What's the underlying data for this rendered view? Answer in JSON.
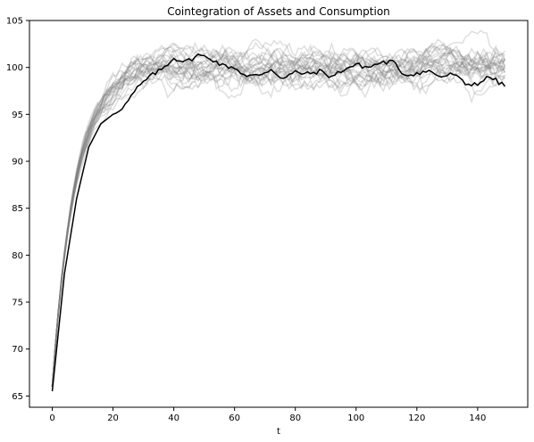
{
  "chart_data": {
    "type": "line",
    "title": "Cointegration of Assets and Consumption",
    "xlabel": "t",
    "ylabel": "",
    "xlim": [
      -7.5,
      156.5
    ],
    "ylim": [
      63.8,
      105
    ],
    "xticks": [
      0,
      20,
      40,
      60,
      80,
      100,
      120,
      140
    ],
    "yticks": [
      65,
      70,
      75,
      80,
      85,
      90,
      95,
      100,
      105
    ],
    "grid": false,
    "legend": "none",
    "n_points": 150,
    "background_series": {
      "count": 25,
      "color": "#808080",
      "opacity": 0.25,
      "start": 66.0,
      "plateau": 100.0
    },
    "highlight_series": {
      "color": "#000000",
      "x": [
        0,
        4,
        8,
        12,
        16,
        20,
        24,
        28,
        32,
        36,
        40,
        44,
        48,
        52,
        56,
        60,
        64,
        68,
        72,
        76,
        80,
        84,
        88,
        92,
        96,
        100,
        104,
        108,
        112,
        116,
        120,
        124,
        128,
        132,
        136,
        140,
        144,
        149
      ],
      "y": [
        65.5,
        78.0,
        86.0,
        91.5,
        94.0,
        95.0,
        96.0,
        97.8,
        99.0,
        99.8,
        101.0,
        100.6,
        101.3,
        101.0,
        100.2,
        100.0,
        99.0,
        99.2,
        99.8,
        98.8,
        99.5,
        99.3,
        99.6,
        99.0,
        99.8,
        100.3,
        100.0,
        100.5,
        100.6,
        99.2,
        99.4,
        99.6,
        99.0,
        99.3,
        98.2,
        98.3,
        99.0,
        98.0
      ]
    }
  }
}
